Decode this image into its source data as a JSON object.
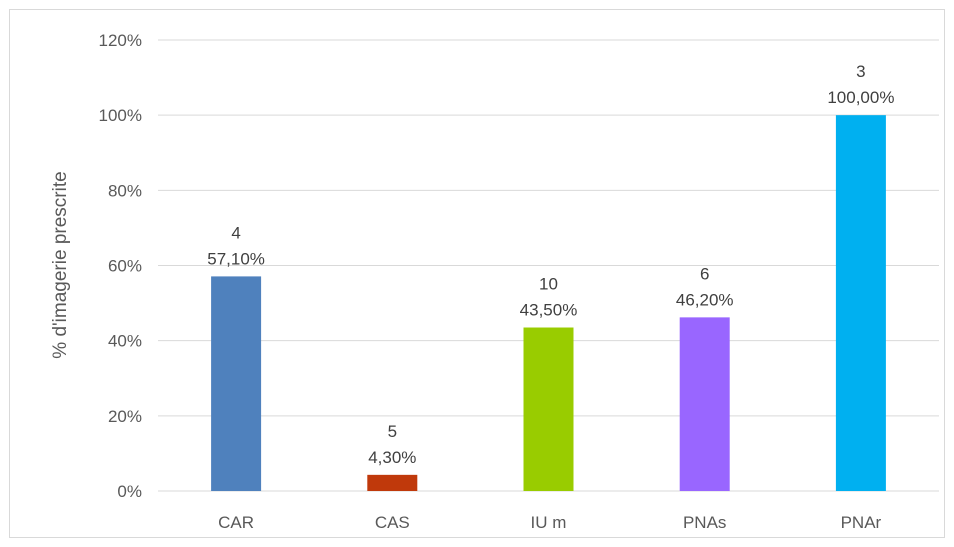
{
  "chart_data": {
    "type": "bar",
    "title": "",
    "xlabel": "",
    "ylabel": "% d'imagerie prescrite",
    "ylim": [
      0,
      120
    ],
    "yticks": [
      0,
      20,
      40,
      60,
      80,
      100,
      120
    ],
    "ytick_labels": [
      "0%",
      "20%",
      "40%",
      "60%",
      "80%",
      "100%",
      "120%"
    ],
    "grid": true,
    "legend": "none",
    "categories": [
      "CAR",
      "CAS",
      "IU m",
      "PNAs",
      "PNAr"
    ],
    "values": [
      57.1,
      4.3,
      43.5,
      46.2,
      100.0
    ],
    "counts": [
      "4",
      "5",
      "10",
      "6",
      "3"
    ],
    "value_labels": [
      "57,10%",
      "4,30%",
      "43,50%",
      "46,20%",
      "100,00%"
    ],
    "colors": [
      "#4f81bd",
      "#c0390b",
      "#99cc00",
      "#9966ff",
      "#00b0f0"
    ]
  }
}
